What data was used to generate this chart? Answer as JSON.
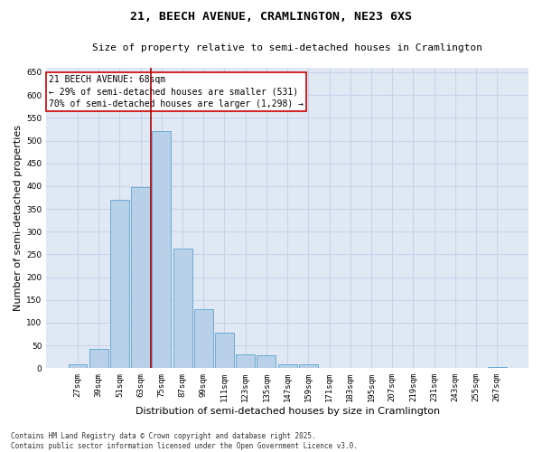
{
  "title1": "21, BEECH AVENUE, CRAMLINGTON, NE23 6XS",
  "title2": "Size of property relative to semi-detached houses in Cramlington",
  "xlabel": "Distribution of semi-detached houses by size in Cramlington",
  "ylabel": "Number of semi-detached properties",
  "categories": [
    "27sqm",
    "39sqm",
    "51sqm",
    "63sqm",
    "75sqm",
    "87sqm",
    "99sqm",
    "111sqm",
    "123sqm",
    "135sqm",
    "147sqm",
    "159sqm",
    "171sqm",
    "183sqm",
    "195sqm",
    "207sqm",
    "219sqm",
    "231sqm",
    "243sqm",
    "255sqm",
    "267sqm"
  ],
  "values": [
    8,
    42,
    370,
    398,
    520,
    263,
    130,
    79,
    30,
    28,
    9,
    9,
    0,
    0,
    0,
    0,
    0,
    0,
    0,
    0,
    2
  ],
  "bar_color": "#b8d0e8",
  "bar_edge_color": "#6aaad4",
  "vline_color": "#aa0000",
  "annotation_text": "21 BEECH AVENUE: 68sqm\n← 29% of semi-detached houses are smaller (531)\n70% of semi-detached houses are larger (1,298) →",
  "annotation_box_color": "#ffffff",
  "annotation_box_edge": "#cc0000",
  "ylim": [
    0,
    660
  ],
  "yticks": [
    0,
    50,
    100,
    150,
    200,
    250,
    300,
    350,
    400,
    450,
    500,
    550,
    600,
    650
  ],
  "grid_color": "#c8d4e8",
  "bg_color": "#e0e8f4",
  "footer": "Contains HM Land Registry data © Crown copyright and database right 2025.\nContains public sector information licensed under the Open Government Licence v3.0.",
  "title_fontsize": 9.5,
  "subtitle_fontsize": 8,
  "tick_fontsize": 6.5,
  "ylabel_fontsize": 8,
  "xlabel_fontsize": 8,
  "annotation_fontsize": 7,
  "footer_fontsize": 5.5
}
